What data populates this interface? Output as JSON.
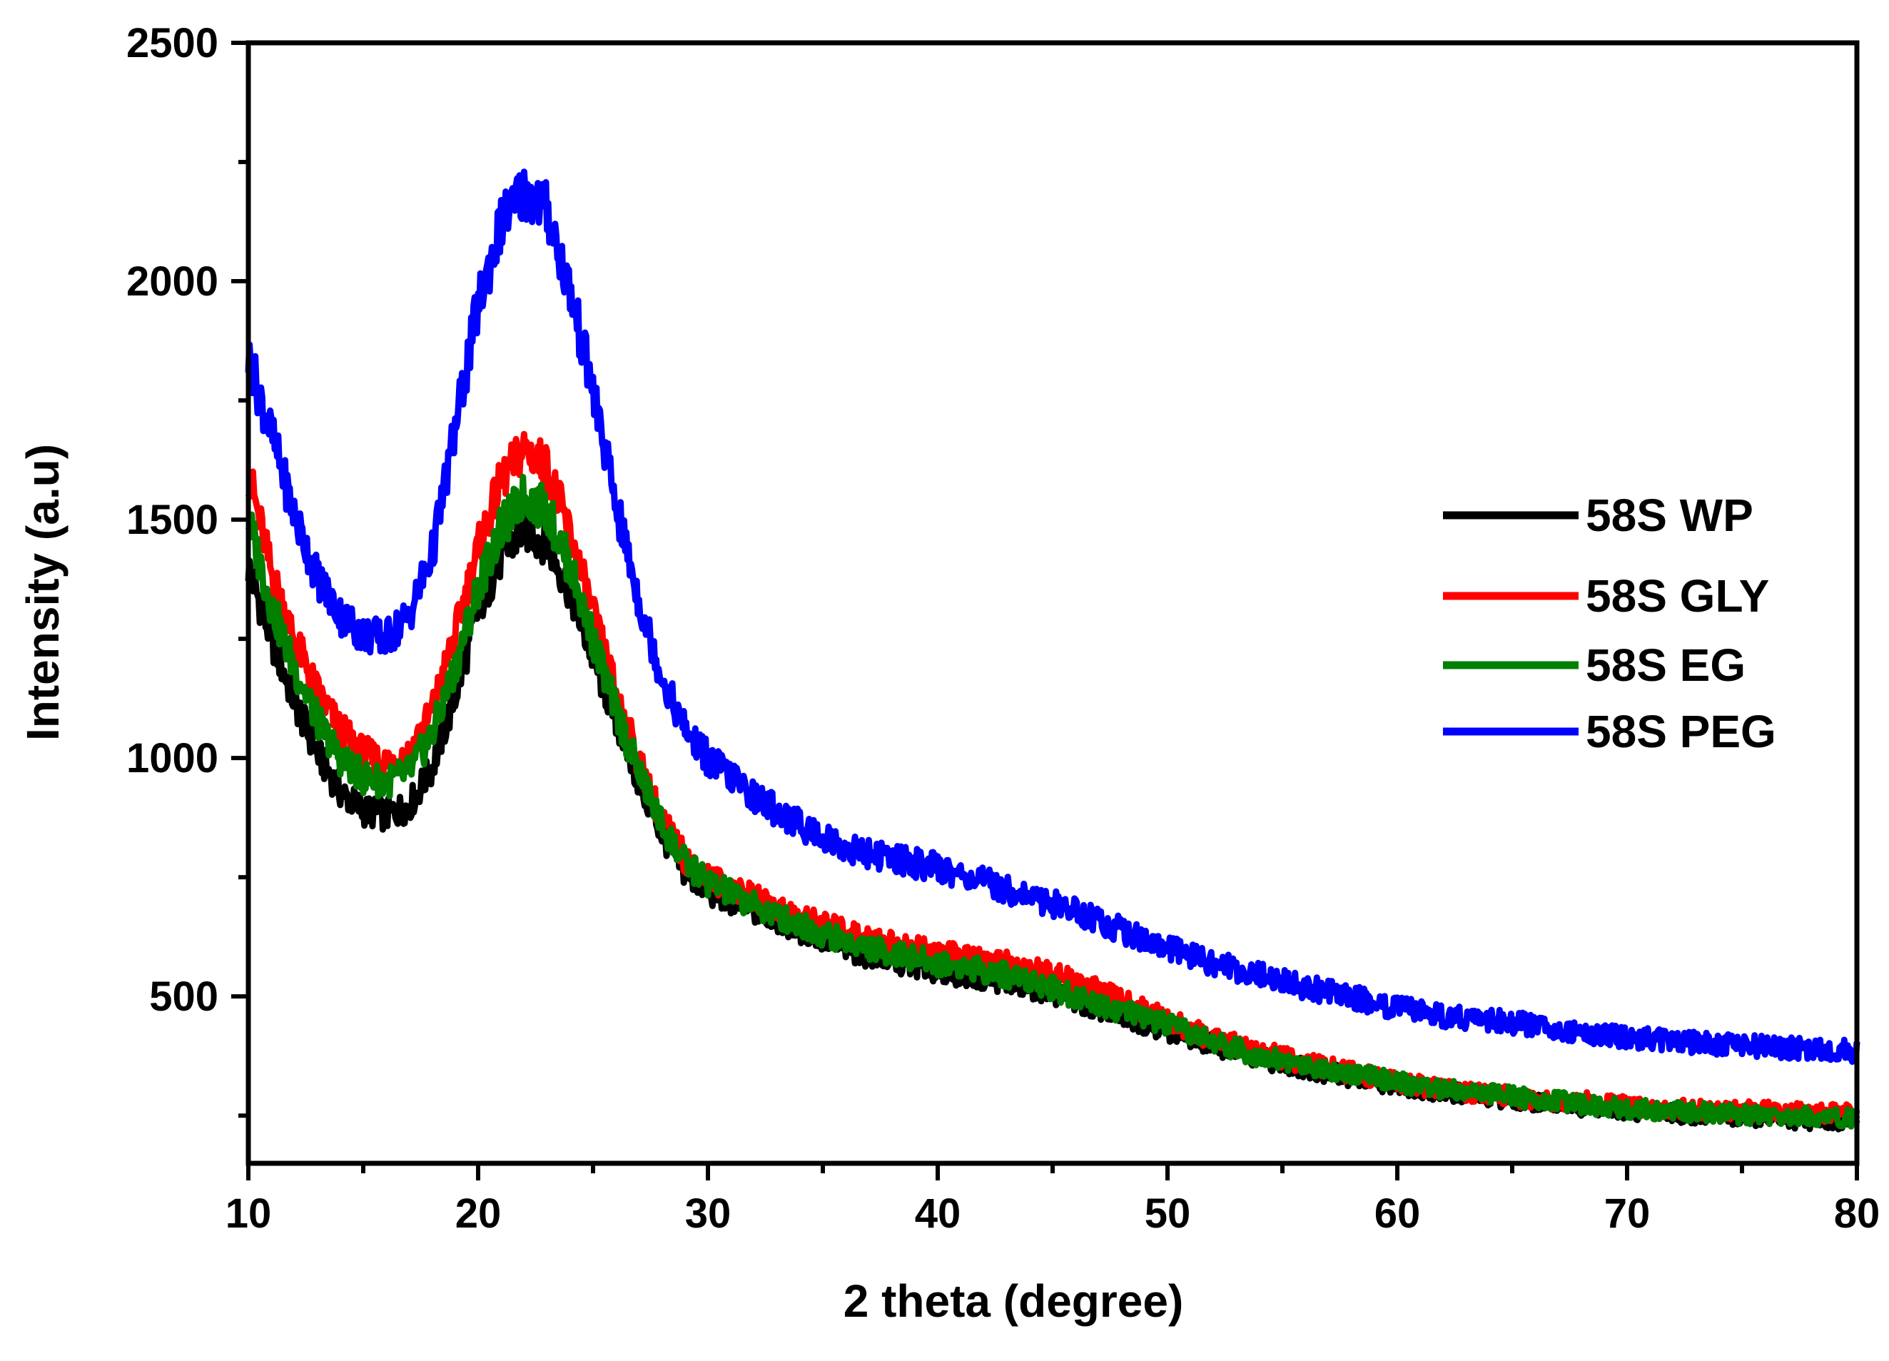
{
  "chart_data": {
    "type": "line",
    "title": "",
    "xlabel": "2 theta (degree)",
    "ylabel": "Intensity (a.u)",
    "xlim": [
      10,
      80
    ],
    "ylim": [
      150,
      2500
    ],
    "x_ticks": [
      10,
      20,
      30,
      40,
      50,
      60,
      70,
      80
    ],
    "x_tick_labels": [
      "10",
      "20",
      "30",
      "40",
      "50",
      "60",
      "70",
      "80"
    ],
    "y_ticks": [
      500,
      1000,
      1500,
      2000,
      2500
    ],
    "y_tick_labels": [
      "500",
      "1000",
      "1500",
      "2000",
      "2500"
    ],
    "grid": false,
    "legend_position": "center-right",
    "x": [
      10,
      11,
      12,
      13,
      14,
      15,
      16,
      17,
      18,
      19,
      20,
      21,
      22,
      23,
      24,
      25,
      26,
      27,
      28,
      29,
      30,
      32,
      34,
      36,
      38,
      40,
      42,
      44,
      46,
      48,
      50,
      52,
      54,
      56,
      58,
      60,
      62,
      64,
      66,
      68,
      70,
      72,
      74,
      76,
      78,
      80
    ],
    "series": [
      {
        "name": "58S WP",
        "color": "#000000",
        "values": [
          1400,
          1250,
          1120,
          1010,
          930,
          890,
          880,
          900,
          980,
          1130,
          1310,
          1420,
          1480,
          1450,
          1350,
          1210,
          1080,
          950,
          840,
          760,
          720,
          680,
          640,
          600,
          575,
          555,
          540,
          520,
          490,
          460,
          430,
          400,
          370,
          350,
          330,
          315,
          300,
          290,
          280,
          270,
          260,
          255,
          250,
          245,
          240,
          240
        ]
      },
      {
        "name": "58S GLY",
        "color": "#ff0000",
        "values": [
          1600,
          1390,
          1250,
          1140,
          1060,
          1010,
          990,
          1010,
          1100,
          1260,
          1440,
          1580,
          1650,
          1610,
          1470,
          1300,
          1140,
          990,
          870,
          790,
          750,
          705,
          665,
          635,
          610,
          590,
          575,
          560,
          530,
          490,
          450,
          410,
          385,
          360,
          340,
          320,
          305,
          295,
          285,
          280,
          270,
          265,
          260,
          260,
          255,
          255
        ]
      },
      {
        "name": "58S EG",
        "color": "#007f00",
        "values": [
          1500,
          1320,
          1190,
          1080,
          1000,
          960,
          950,
          970,
          1050,
          1190,
          1360,
          1480,
          1550,
          1520,
          1400,
          1250,
          1100,
          970,
          860,
          780,
          740,
          690,
          650,
          615,
          590,
          570,
          555,
          535,
          500,
          470,
          440,
          405,
          375,
          355,
          340,
          320,
          305,
          295,
          285,
          275,
          265,
          260,
          255,
          250,
          248,
          245
        ]
      },
      {
        "name": "58S PEG",
        "color": "#0000ff",
        "values": [
          1840,
          1680,
          1510,
          1380,
          1300,
          1260,
          1250,
          1300,
          1430,
          1690,
          1950,
          2120,
          2190,
          2150,
          1980,
          1770,
          1530,
          1330,
          1170,
          1060,
          1000,
          920,
          860,
          810,
          790,
          770,
          740,
          710,
          680,
          640,
          600,
          570,
          545,
          520,
          500,
          475,
          460,
          450,
          440,
          425,
          415,
          405,
          400,
          395,
          390,
          385
        ]
      }
    ]
  }
}
